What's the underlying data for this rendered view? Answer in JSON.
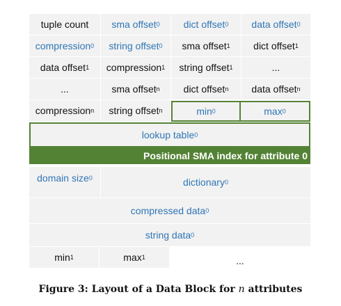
{
  "rows": {
    "r1": {
      "tuple_count": "tuple count",
      "sma_offset_0": {
        "text": "sma offset",
        "sub": "0"
      },
      "dict_offset_0": {
        "text": "dict offset",
        "sub": "0"
      },
      "data_offset_0": {
        "text": "data offset",
        "sub": "0"
      }
    },
    "r2": {
      "compression_0": {
        "text": "compression",
        "sub": "0"
      },
      "string_offset_0": {
        "text": "string offset",
        "sub": "0"
      },
      "sma_offset_1": {
        "text": "sma offset",
        "sub": "1"
      },
      "dict_offset_1": {
        "text": "dict offset",
        "sub": "1"
      }
    },
    "r3": {
      "data_offset_1": {
        "text": "data offset",
        "sub": "1"
      },
      "compression_1": {
        "text": "compression",
        "sub": "1"
      },
      "string_offset_1": {
        "text": "string offset",
        "sub": "1"
      },
      "ellipsis": "..."
    },
    "r4": {
      "ellipsis": "...",
      "sma_offset_n": {
        "text": "sma offset",
        "sub": "n"
      },
      "dict_offset_n": {
        "text": "dict offset",
        "sub": "n"
      },
      "data_offset_n": {
        "text": "data offset",
        "sub": "n"
      }
    },
    "r5": {
      "compression_n": {
        "text": "compression",
        "sub": "n"
      },
      "string_offset_n": {
        "text": "string offset",
        "sub": "n"
      },
      "min_0": {
        "text": "min",
        "sub": "0"
      },
      "max_0": {
        "text": "max",
        "sub": "0"
      }
    }
  },
  "lookup_table": {
    "text": "lookup table",
    "sub": "0"
  },
  "sma_index_label": "Positional SMA index for attribute 0",
  "domain_size": {
    "text": "domain size",
    "sub": "0"
  },
  "dictionary": {
    "text": "dictionary",
    "sub": "0"
  },
  "compressed_data": {
    "text": "compressed data",
    "sub": "0"
  },
  "string_data": {
    "text": "string data",
    "sub": "0"
  },
  "last_row": {
    "min_1": {
      "text": "min",
      "sub": "1"
    },
    "max_1": {
      "text": "max",
      "sub": "1"
    },
    "ellipsis": "..."
  },
  "caption": {
    "prefix": "Figure 3: Layout of a Data Block for",
    "var": "n",
    "suffix": "attributes"
  },
  "colors": {
    "cell_background": "#f2f2f2",
    "text_black": "#111111",
    "text_blue": "#2f75b5",
    "accent_green": "#548235"
  }
}
